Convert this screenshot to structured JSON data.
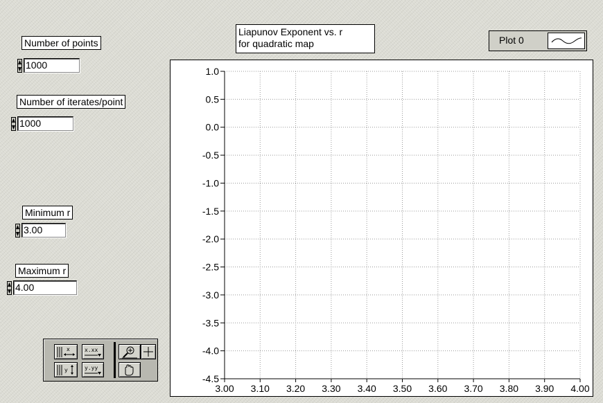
{
  "controls": {
    "num_points": {
      "label": "Number of points",
      "value": "1000"
    },
    "num_iterates": {
      "label": "Number of iterates/point",
      "value": "1000"
    },
    "min_r": {
      "label": "Minimum r",
      "value": "3.00"
    },
    "max_r": {
      "label": "Maximum r",
      "value": "4.00"
    }
  },
  "chart_title": {
    "line1": "Liapunov Exponent vs. r",
    "line2": "for quadratic map"
  },
  "legend": {
    "plot_name": "Plot 0"
  },
  "palette": {
    "icons": [
      "x-autoscale-icon",
      "x-format-icon",
      "zoom-icon",
      "crosshair-cursor-icon",
      "y-autoscale-icon",
      "y-format-icon",
      "pan-hand-icon"
    ]
  },
  "colors": {
    "background": "#dcdcd4",
    "plot_background": "#ffffff",
    "grid": "#999999",
    "legend_background": "#d0d0c8",
    "palette_background": "#b8b8b0"
  },
  "chart_data": {
    "type": "line",
    "title": "Liapunov Exponent vs. r\nfor quadratic map",
    "xlabel": "",
    "ylabel": "",
    "xlim": [
      3.0,
      4.0
    ],
    "ylim": [
      -4.5,
      1.0
    ],
    "x_ticks": [
      "3.00",
      "3.10",
      "3.20",
      "3.30",
      "3.40",
      "3.50",
      "3.60",
      "3.70",
      "3.80",
      "3.90",
      "4.00"
    ],
    "y_ticks": [
      "1.0",
      "0.5",
      "0.0",
      "-0.5",
      "-1.0",
      "-1.5",
      "-2.0",
      "-2.5",
      "-3.0",
      "-3.5",
      "-4.0",
      "-4.5"
    ],
    "grid": true,
    "legend": "top-right",
    "series": [
      {
        "name": "Plot 0",
        "values": []
      }
    ]
  }
}
